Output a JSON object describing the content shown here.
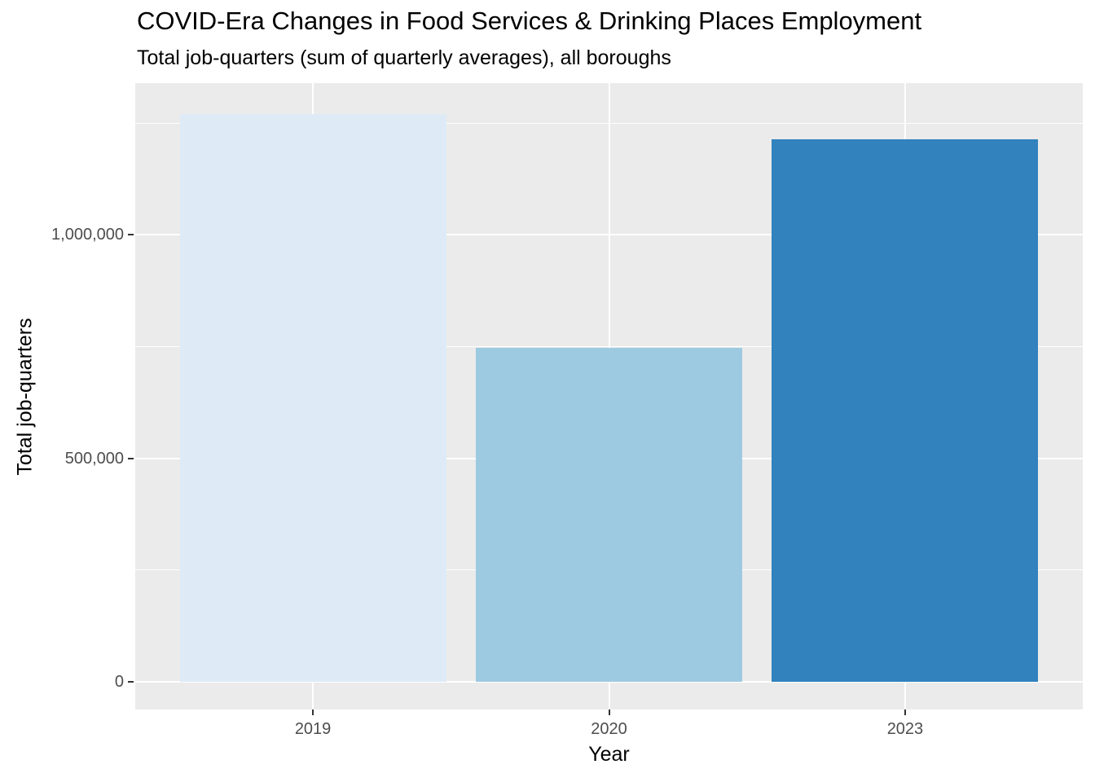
{
  "chart_data": {
    "type": "bar",
    "title": "COVID-Era Changes in Food Services & Drinking Places Employment",
    "subtitle": "Total job-quarters (sum of quarterly averages), all boroughs",
    "xlabel": "Year",
    "ylabel": "Total job-quarters",
    "categories": [
      "2019",
      "2020",
      "2023"
    ],
    "values": [
      1270000,
      747000,
      1215000
    ],
    "bar_colors": [
      "#DEEBF7",
      "#9ECAE1",
      "#3182BD"
    ],
    "y_axis": {
      "ticks": [
        0,
        500000,
        1000000
      ],
      "tick_labels": [
        "0",
        "500,000",
        "1,000,000"
      ],
      "minor_ticks": [
        250000,
        750000,
        1250000
      ],
      "ylim": [
        -62000,
        1340000
      ]
    },
    "grid": true,
    "legend_position": "none",
    "style": {
      "background": "#FFFFFF",
      "panel_bg": "#EBEBEB",
      "grid_color": "#FFFFFF",
      "tick_mark_color": "#333333",
      "tick_label_color": "#4D4D4D",
      "text_color": "#000000"
    }
  }
}
